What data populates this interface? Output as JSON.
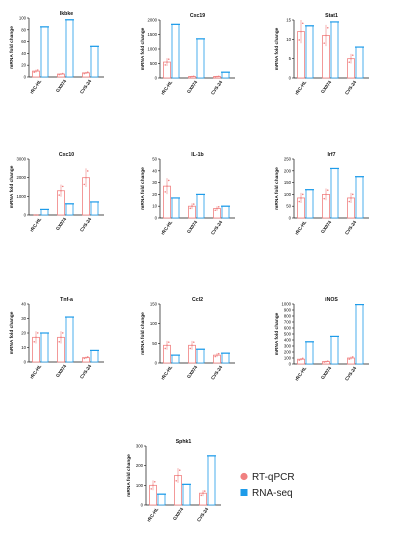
{
  "colors": {
    "rt_qpcr": "#f08080",
    "rna_seq": "#1e9be9",
    "axis": "#111111"
  },
  "legend": [
    {
      "name": "RT-qPCR",
      "color": "#f08080"
    },
    {
      "name": "RNA-seq",
      "color": "#1e9be9"
    }
  ],
  "chart_data": [
    {
      "type": "bar",
      "title": "Ikbke",
      "ylabel": "mRNA fold change",
      "ylim": [
        0,
        100
      ],
      "yticks": [
        0,
        20,
        40,
        60,
        80,
        100
      ],
      "categories": [
        "rRC-HL",
        "GX074",
        "CVS-24"
      ],
      "series": [
        {
          "name": "RT-qPCR",
          "values": [
            10,
            5,
            7
          ]
        },
        {
          "name": "RNA-seq",
          "values": [
            85,
            97,
            52
          ]
        }
      ]
    },
    {
      "type": "bar",
      "title": "Cxc19",
      "ylabel": "mRNA fold change",
      "ylim": [
        0,
        2000
      ],
      "yticks": [
        0,
        500,
        1000,
        1500,
        2000
      ],
      "categories": [
        "rRC-HL",
        "GX074",
        "CVS-24"
      ],
      "series": [
        {
          "name": "RT-qPCR",
          "values": [
            550,
            50,
            50
          ]
        },
        {
          "name": "RNA-seq",
          "values": [
            1850,
            1350,
            200
          ]
        }
      ]
    },
    {
      "type": "bar",
      "title": "Stat1",
      "ylabel": "mRNA fold change",
      "ylim": [
        0,
        15
      ],
      "yticks": [
        0,
        5,
        10,
        15
      ],
      "categories": [
        "rRC-HL",
        "GX074",
        "CVS-24"
      ],
      "series": [
        {
          "name": "RT-qPCR",
          "values": [
            12,
            11,
            5
          ]
        },
        {
          "name": "RNA-seq",
          "values": [
            13.5,
            14.5,
            8
          ]
        }
      ]
    },
    {
      "type": "bar",
      "title": "Cxc10",
      "ylabel": "mRNA fold change",
      "ylim": [
        0,
        3000
      ],
      "yticks": [
        0,
        1000,
        2000,
        3000
      ],
      "categories": [
        "rRC-HL",
        "GX074",
        "CVS-24"
      ],
      "series": [
        {
          "name": "RT-qPCR",
          "values": [
            0,
            1300,
            2000
          ]
        },
        {
          "name": "RNA-seq",
          "values": [
            300,
            600,
            700
          ]
        }
      ]
    },
    {
      "type": "bar",
      "title": "IL-1b",
      "ylabel": "mRNA fold change",
      "ylim": [
        0,
        50
      ],
      "yticks": [
        0,
        10,
        20,
        30,
        40,
        50
      ],
      "categories": [
        "rRC-HL",
        "GX074",
        "CVS-24"
      ],
      "series": [
        {
          "name": "RT-qPCR",
          "values": [
            27,
            10,
            8
          ]
        },
        {
          "name": "RNA-seq",
          "values": [
            17,
            20,
            10
          ]
        }
      ]
    },
    {
      "type": "bar",
      "title": "Irf7",
      "ylabel": "mRNA fold change",
      "ylim": [
        0,
        250
      ],
      "yticks": [
        0,
        50,
        100,
        150,
        200,
        250
      ],
      "categories": [
        "rRC-HL",
        "GX074",
        "CVS-24"
      ],
      "series": [
        {
          "name": "RT-qPCR",
          "values": [
            85,
            100,
            85
          ]
        },
        {
          "name": "RNA-seq",
          "values": [
            120,
            210,
            175
          ]
        }
      ]
    },
    {
      "type": "bar",
      "title": "Tnf-a",
      "ylabel": "mRNA fold change",
      "ylim": [
        0,
        40
      ],
      "yticks": [
        0,
        10,
        20,
        30,
        40
      ],
      "categories": [
        "rRC-HL",
        "GX074",
        "CVS-24"
      ],
      "series": [
        {
          "name": "RT-qPCR",
          "values": [
            17,
            17,
            3
          ]
        },
        {
          "name": "RNA-seq",
          "values": [
            20,
            31,
            8
          ]
        }
      ]
    },
    {
      "type": "bar",
      "title": "Ccl2",
      "ylabel": "mRNA fold change",
      "ylim": [
        0,
        150
      ],
      "yticks": [
        0,
        50,
        100,
        150
      ],
      "categories": [
        "rRC-HL",
        "GX074",
        "CVS-24"
      ],
      "series": [
        {
          "name": "RT-qPCR",
          "values": [
            45,
            45,
            20
          ]
        },
        {
          "name": "RNA-seq",
          "values": [
            20,
            35,
            25
          ]
        }
      ]
    },
    {
      "type": "bar",
      "title": "iNOS",
      "ylabel": "mRNA fold change",
      "ylim": [
        0,
        1000
      ],
      "yticks": [
        0,
        100,
        200,
        300,
        400,
        500,
        600,
        700,
        800,
        900,
        1000
      ],
      "categories": [
        "rRC-HL",
        "GX074",
        "CVS-24"
      ],
      "series": [
        {
          "name": "RT-qPCR",
          "values": [
            80,
            40,
            100
          ]
        },
        {
          "name": "RNA-seq",
          "values": [
            370,
            460,
            990
          ]
        }
      ]
    },
    {
      "type": "bar",
      "title": "Sphk1",
      "ylabel": "mRNA fold change",
      "ylim": [
        0,
        300
      ],
      "yticks": [
        0,
        100,
        200,
        300
      ],
      "categories": [
        "rRC-HL",
        "GX074",
        "CVS-24"
      ],
      "series": [
        {
          "name": "RT-qPCR",
          "values": [
            100,
            150,
            60
          ]
        },
        {
          "name": "RNA-seq",
          "values": [
            55,
            105,
            250
          ]
        }
      ]
    }
  ]
}
